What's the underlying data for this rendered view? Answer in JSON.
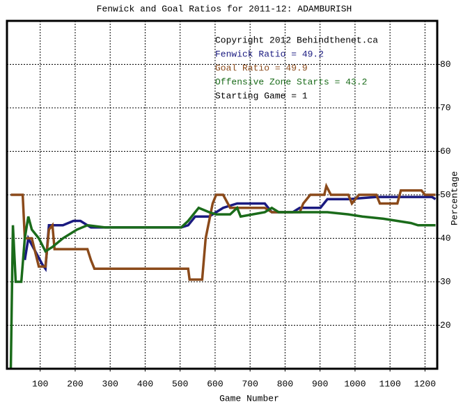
{
  "chart_data": {
    "type": "line",
    "title": "Fenwick and Goal Ratios for 2011-12: ADAMBURISH",
    "x_label": "Game Number",
    "y_label": "Percentage",
    "xlim": [
      5,
      1235
    ],
    "ylim": [
      10,
      90
    ],
    "xticks": [
      100,
      200,
      300,
      400,
      500,
      600,
      700,
      800,
      900,
      1000,
      1100,
      1200
    ],
    "yticks": [
      20,
      30,
      40,
      50,
      60,
      70,
      80
    ],
    "grid": true,
    "annotations": [
      {
        "text": "Copyright 2012 Behindthenet.ca",
        "color": "#000000"
      },
      {
        "text": "Fenwick Ratio = 49.2",
        "color": "#1a1a80"
      },
      {
        "text": "Goal Ratio = 49.9",
        "color": "#8b4a1a"
      },
      {
        "text": "Offensive Zone Starts = 43.2",
        "color": "#1a6b1a"
      },
      {
        "text": "Starting Game = 1",
        "color": "#000000"
      }
    ],
    "series": [
      {
        "color": "#1a1a80",
        "x": [
          56,
          66,
          106,
          115,
          125,
          165,
          195,
          215,
          245,
          503,
          523,
          543,
          583,
          623,
          663,
          742,
          762,
          822,
          842,
          901,
          921,
          981,
          1061,
          1220,
          1230
        ],
        "values": [
          35,
          40,
          34,
          33,
          43,
          43,
          44,
          44,
          42.5,
          42.5,
          43,
          45,
          45,
          47,
          48,
          48,
          46,
          46,
          47,
          47,
          49,
          49,
          49.5,
          49.5,
          49
        ]
      },
      {
        "color": "#8b4a1a",
        "x": [
          16,
          50,
          56,
          76,
          96,
          115,
          125,
          135,
          141,
          235,
          245,
          255,
          523,
          527,
          563,
          573,
          583,
          593,
          603,
          623,
          643,
          742,
          762,
          842,
          852,
          872,
          912,
          918,
          931,
          981,
          991,
          1011,
          1061,
          1071,
          1121,
          1131,
          1190,
          1200,
          1230
        ],
        "values": [
          50,
          50,
          40,
          40,
          33.5,
          33.5,
          42,
          43,
          37.5,
          37.5,
          35,
          33,
          33,
          30.5,
          30.5,
          40,
          44,
          48,
          50,
          50,
          47,
          47,
          46,
          46,
          48,
          50,
          50,
          52,
          50,
          50,
          48,
          50,
          50,
          48,
          48,
          51,
          51,
          50,
          50
        ]
      },
      {
        "color": "#1a6b1a",
        "x": [
          16,
          22,
          30,
          46,
          56,
          66,
          76,
          96,
          115,
          135,
          165,
          205,
          235,
          285,
          503,
          523,
          553,
          583,
          603,
          643,
          663,
          673,
          742,
          762,
          782,
          882,
          921,
          981,
          1021,
          1081,
          1160,
          1180,
          1230
        ],
        "values": [
          10,
          43,
          30,
          30,
          40,
          45,
          42,
          40,
          37,
          38,
          40,
          42,
          43,
          42.5,
          42.5,
          44,
          47,
          46,
          45.5,
          45.5,
          47,
          45,
          46,
          47,
          46,
          46,
          46,
          45.5,
          45,
          44.5,
          43.5,
          43,
          43
        ]
      }
    ]
  }
}
